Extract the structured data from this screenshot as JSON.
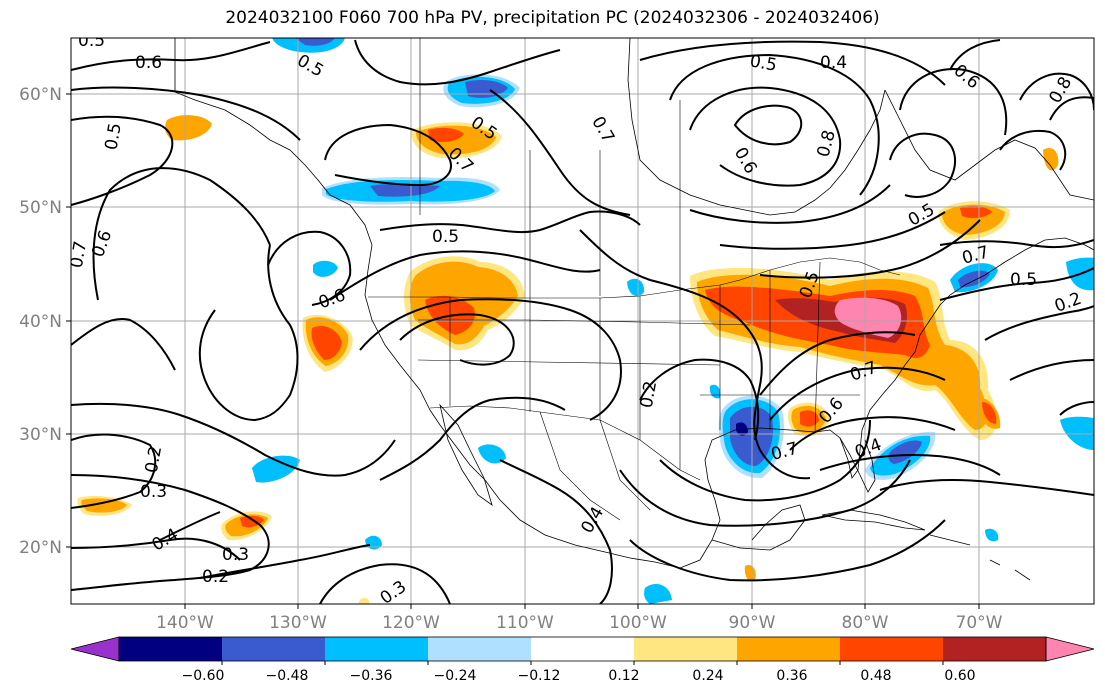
{
  "title": "2024032100 F060 700 hPa PV, precipitation PC (2024032306 - 2024032406)",
  "lat_labels": [
    "60°N",
    "50°N",
    "40°N",
    "30°N",
    "20°N"
  ],
  "lon_labels": [
    "140°W",
    "130°W",
    "120°W",
    "110°W",
    "100°W",
    "90°W",
    "80°W",
    "70°W"
  ],
  "contour_labels": [
    "0.5",
    "0.6",
    "0.5",
    "0.5",
    "0.7",
    "0.6",
    "0.6",
    "0.5",
    "0.5",
    "0.7",
    "0.4",
    "0.5",
    "0.8",
    "0.6",
    "0.5",
    "0.7",
    "0.5",
    "0.2",
    "0.2",
    "0.3",
    "0.4",
    "0.3",
    "0.2",
    "0.3",
    "0.2",
    "0.4",
    "0.7",
    "0.6",
    "0.7",
    "0.4",
    "0.5",
    "0.7",
    "0.6",
    "0.8"
  ],
  "colorbar": {
    "tick_labels": [
      "−0.60",
      "−0.48",
      "−0.36",
      "−0.24",
      "−0.12",
      "0.12",
      "0.24",
      "0.36",
      "0.48",
      "0.60"
    ],
    "colors": [
      "#9932cc",
      "#000080",
      "#3a5bd0",
      "#00bfff",
      "#b0e0ff",
      "#ffffff",
      "#ffe680",
      "#ffa500",
      "#ff4500",
      "#b22222",
      "#ff85b0"
    ]
  }
}
